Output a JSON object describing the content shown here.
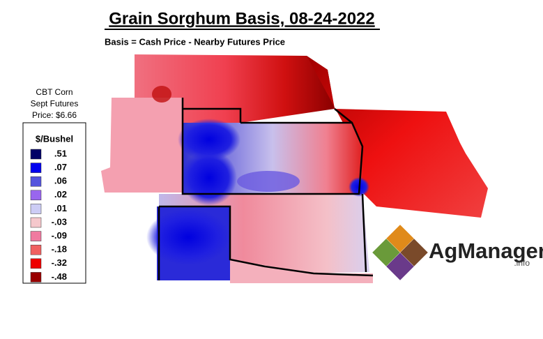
{
  "header": {
    "title": "Grain Sorghum Basis, 08-24-2022",
    "subtitle": "Basis = Cash Price - Nearby Futures Price"
  },
  "futures": {
    "lines": [
      "CBT Corn",
      "Sept Futures",
      "Price: $6.66"
    ]
  },
  "legend": {
    "title": "$/Bushel",
    "items": [
      {
        "label": ".51",
        "color": "#000066"
      },
      {
        "label": ".07",
        "color": "#0000ee"
      },
      {
        "label": ".06",
        "color": "#5555dd"
      },
      {
        "label": ".02",
        "color": "#9966ee"
      },
      {
        "label": ".01",
        "color": "#ccccf5"
      },
      {
        "label": "-.03",
        "color": "#f5c8cc"
      },
      {
        "label": "-.09",
        "color": "#f07aa0"
      },
      {
        "label": "-.18",
        "color": "#f06060"
      },
      {
        "label": "-.32",
        "color": "#ee0000"
      },
      {
        "label": "-.48",
        "color": "#990000"
      }
    ]
  },
  "logo": {
    "name": "AgManager",
    "suffix": ".info"
  }
}
